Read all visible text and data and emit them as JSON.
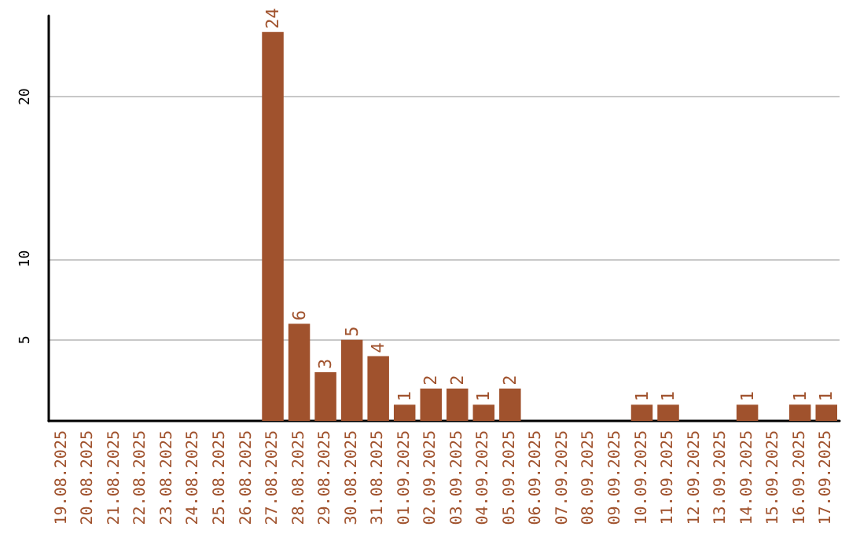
{
  "chart_data": {
    "type": "bar",
    "categories": [
      "19.08.2025",
      "20.08.2025",
      "21.08.2025",
      "22.08.2025",
      "23.08.2025",
      "24.08.2025",
      "25.08.2025",
      "26.08.2025",
      "27.08.2025",
      "28.08.2025",
      "29.08.2025",
      "30.08.2025",
      "31.08.2025",
      "01.09.2025",
      "02.09.2025",
      "03.09.2025",
      "04.09.2025",
      "05.09.2025",
      "06.09.2025",
      "07.09.2025",
      "08.09.2025",
      "09.09.2025",
      "10.09.2025",
      "11.09.2025",
      "12.09.2025",
      "13.09.2025",
      "14.09.2025",
      "15.09.2025",
      "16.09.2025",
      "17.09.2025"
    ],
    "values": [
      0,
      0,
      0,
      0,
      0,
      0,
      0,
      0,
      24,
      6,
      3,
      5,
      4,
      1,
      2,
      2,
      1,
      2,
      0,
      0,
      0,
      0,
      1,
      1,
      0,
      0,
      1,
      0,
      1,
      1
    ],
    "value_labels": [
      null,
      null,
      null,
      null,
      null,
      null,
      null,
      null,
      "24",
      "6",
      "3",
      "5",
      "4",
      "1",
      "2",
      "2",
      "1",
      "2",
      null,
      null,
      null,
      null,
      "1",
      "1",
      null,
      null,
      "1",
      null,
      "1",
      "1"
    ],
    "color": "#a0522d",
    "ylim": [
      0,
      25
    ],
    "yticks": [
      5,
      10,
      20
    ],
    "grid": "y"
  }
}
